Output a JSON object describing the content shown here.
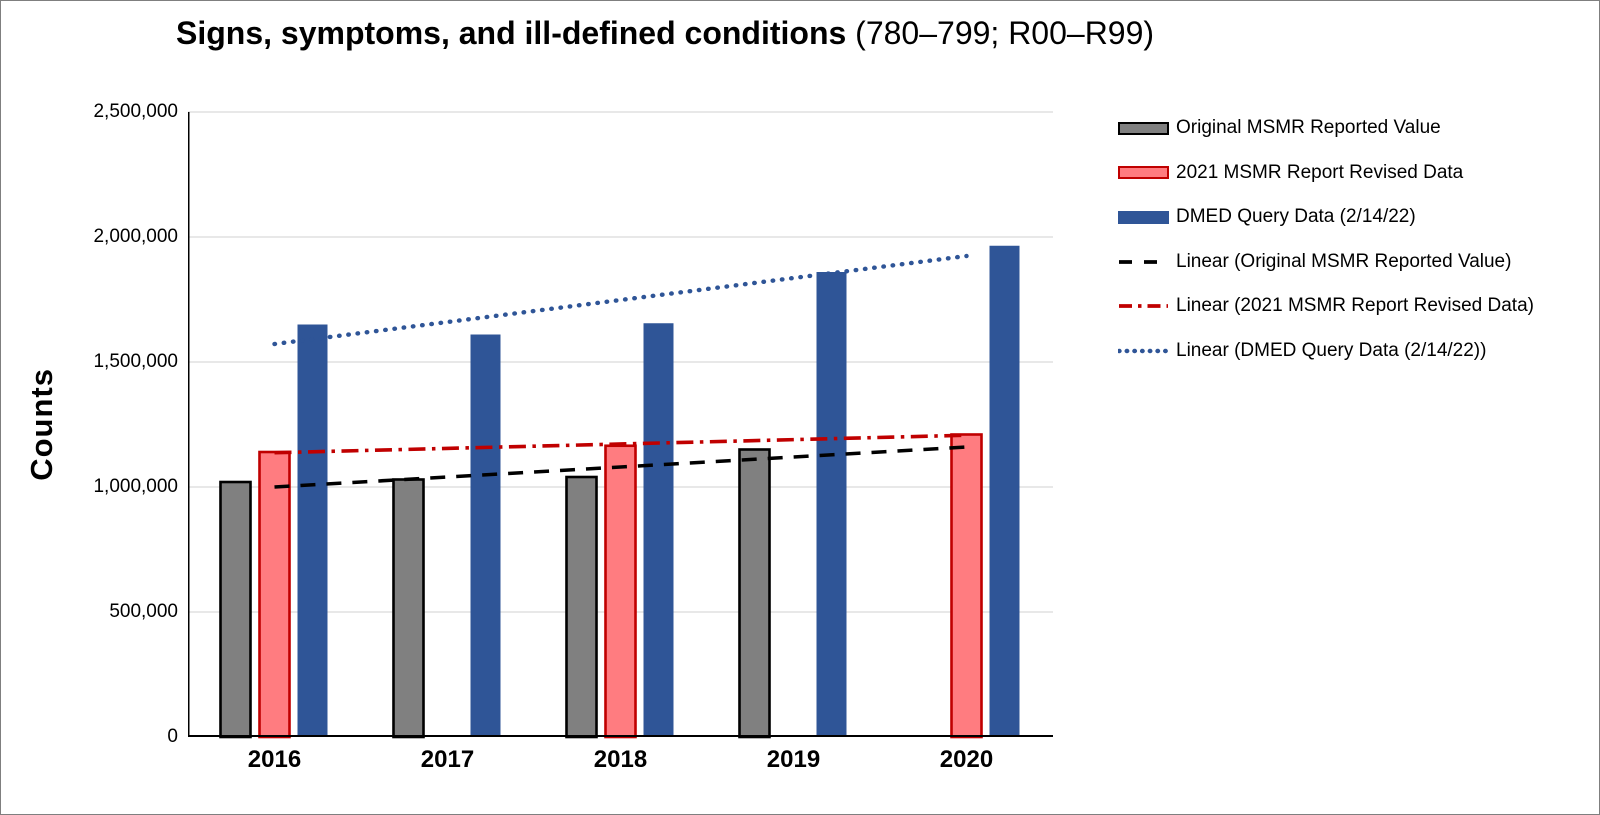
{
  "window": {
    "background": "#ffffff",
    "frame_border_color": "#7f7f7f"
  },
  "chart_data": {
    "type": "bar",
    "title_bold": "Signs, symptoms, and ill-defined conditions",
    "title_suffix": " (780–799; R00–R99)",
    "ylabel": "Counts",
    "categories": [
      "2016",
      "2017",
      "2018",
      "2019",
      "2020"
    ],
    "ylim": [
      0,
      2500000
    ],
    "grid": "horizontal",
    "gridline_color": "#d9d9d9",
    "axis_color": "#000000",
    "legend_position": "right",
    "y_ticks": [
      {
        "value": 0,
        "label": "0"
      },
      {
        "value": 500000,
        "label": "500,000"
      },
      {
        "value": 1000000,
        "label": "1,000,000"
      },
      {
        "value": 1500000,
        "label": "1,500,000"
      },
      {
        "value": 2000000,
        "label": "2,000,000"
      },
      {
        "value": 2500000,
        "label": "2,500,000"
      }
    ],
    "series": [
      {
        "name": "Original MSMR Reported Value",
        "type": "bar",
        "fill": "#808080",
        "border": "#000000",
        "values": [
          1020000,
          1030000,
          1040000,
          1150000,
          null
        ]
      },
      {
        "name": "2021 MSMR Report Revised Data",
        "type": "bar",
        "fill": "#FF7C80",
        "border": "#C00000",
        "values": [
          1140000,
          null,
          1165000,
          null,
          1210000
        ]
      },
      {
        "name": "DMED Query Data (2/14/22)",
        "type": "bar",
        "fill": "#2F5597",
        "border": null,
        "values": [
          1650000,
          1610000,
          1655000,
          1860000,
          1965000
        ]
      }
    ],
    "trendlines": [
      {
        "name": "Linear (Original MSMR Reported Value)",
        "color": "#000000",
        "style": "dashed",
        "start_value": 1000000,
        "end_value": 1160000
      },
      {
        "name": "Linear (2021 MSMR Report Revised Data)",
        "color": "#C00000",
        "style": "dash-dot",
        "start_value": 1137000,
        "end_value": 1207000
      },
      {
        "name": "Linear (DMED Query Data (2/14/22))",
        "color": "#2F5597",
        "style": "dotted",
        "start_value": 1572000,
        "end_value": 1924000
      }
    ]
  }
}
